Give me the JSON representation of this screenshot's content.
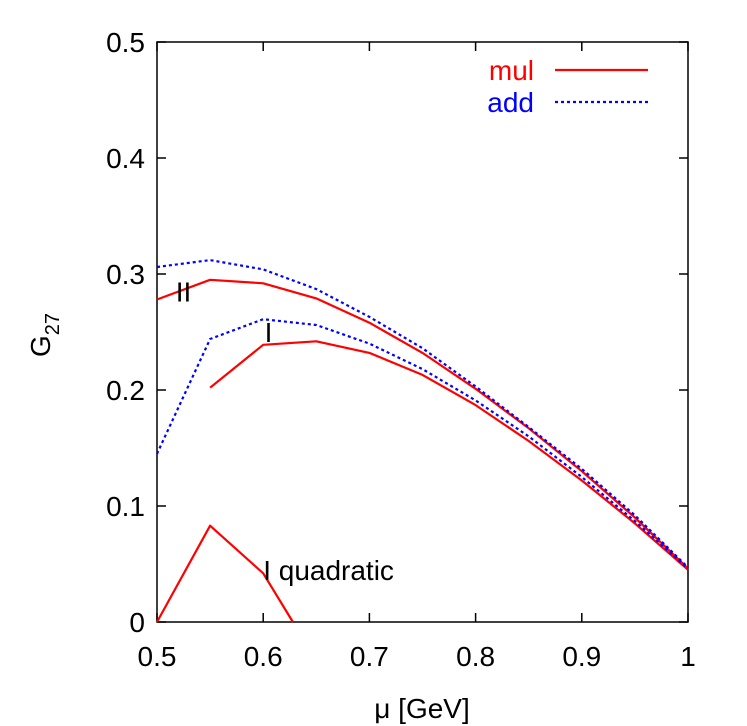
{
  "chart_data": {
    "type": "line",
    "xlabel": "μ [GeV]",
    "ylabel_main": "G",
    "ylabel_sub": "27",
    "xlim": [
      0.5,
      1.0
    ],
    "ylim": [
      0,
      0.5
    ],
    "xticks": [
      0.5,
      0.6,
      0.7,
      0.8,
      0.9,
      1.0
    ],
    "xtick_labels": [
      "0.5",
      "0.6",
      "0.7",
      "0.8",
      "0.9",
      "1"
    ],
    "yticks": [
      0,
      0.1,
      0.2,
      0.3,
      0.4,
      0.5
    ],
    "ytick_labels": [
      "0",
      "0.1",
      "0.2",
      "0.3",
      "0.4",
      "0.5"
    ],
    "grid": false,
    "legend_position": "top-right",
    "legend": [
      {
        "label": "mul",
        "color": "#ff0000",
        "style": "solid"
      },
      {
        "label": "add",
        "color": "#0000ff",
        "style": "dotted"
      }
    ],
    "series": [
      {
        "method": "mul",
        "curve": "II",
        "color": "#ff0000",
        "style": "solid",
        "x": [
          0.5,
          0.55,
          0.6,
          0.65,
          0.7,
          0.75,
          0.8,
          0.85,
          0.9,
          0.95,
          1.0
        ],
        "y": [
          0.278,
          0.295,
          0.292,
          0.279,
          0.258,
          0.232,
          0.201,
          0.167,
          0.13,
          0.09,
          0.046
        ]
      },
      {
        "method": "add",
        "curve": "II",
        "color": "#0000ff",
        "style": "dotted",
        "x": [
          0.5,
          0.55,
          0.6,
          0.65,
          0.7,
          0.75,
          0.8,
          0.85,
          0.9,
          0.95,
          1.0
        ],
        "y": [
          0.306,
          0.312,
          0.304,
          0.287,
          0.263,
          0.236,
          0.203,
          0.168,
          0.132,
          0.092,
          0.047
        ]
      },
      {
        "method": "mul",
        "curve": "I",
        "color": "#ff0000",
        "style": "solid",
        "x": [
          0.55,
          0.6,
          0.65,
          0.7,
          0.75,
          0.8,
          0.85,
          0.9,
          0.95,
          1.0
        ],
        "y": [
          0.202,
          0.239,
          0.242,
          0.232,
          0.213,
          0.187,
          0.156,
          0.122,
          0.085,
          0.045
        ]
      },
      {
        "method": "add",
        "curve": "I",
        "color": "#0000ff",
        "style": "dotted",
        "x": [
          0.5,
          0.55,
          0.6,
          0.65,
          0.7,
          0.75,
          0.8,
          0.85,
          0.9,
          0.95,
          1.0
        ],
        "y": [
          0.145,
          0.244,
          0.261,
          0.256,
          0.24,
          0.218,
          0.191,
          0.16,
          0.125,
          0.087,
          0.046
        ]
      },
      {
        "method": "mul",
        "curve": "I quadratic",
        "color": "#ff0000",
        "style": "solid",
        "x": [
          0.5,
          0.55,
          0.6,
          0.628
        ],
        "y": [
          0.0,
          0.083,
          0.042,
          0.0
        ]
      }
    ],
    "annotations": [
      {
        "text": "II",
        "x": 0.525,
        "y": 0.285
      },
      {
        "text": "I",
        "x": 0.605,
        "y": 0.25
      },
      {
        "text": "I quadratic",
        "x": 0.6,
        "y": 0.045
      }
    ]
  }
}
